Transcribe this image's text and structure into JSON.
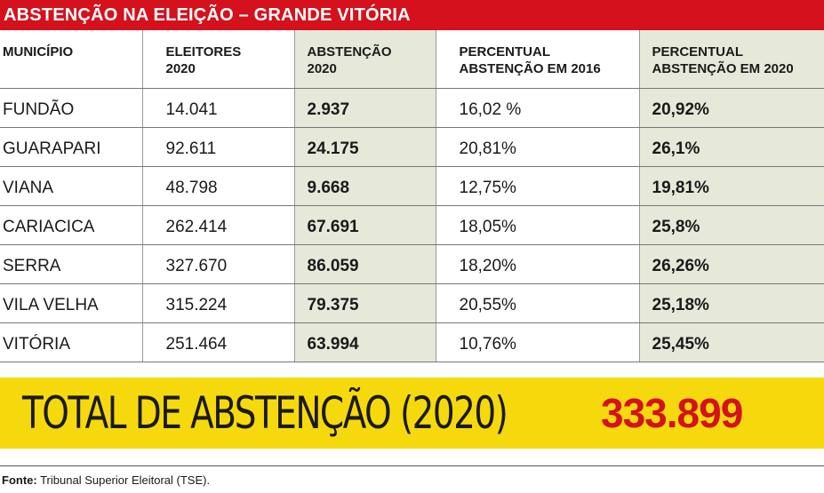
{
  "title": "ABSTENÇÃO NA ELEIÇÃO – GRANDE VITÓRIA",
  "headers": [
    [
      "MUNICÍPIO",
      ""
    ],
    [
      "ELEITORES",
      "2020"
    ],
    [
      "ABSTENÇÃO",
      "2020"
    ],
    [
      "PERCENTUAL",
      "ABSTENÇÃO EM 2016"
    ],
    [
      "PERCENTUAL",
      "ABSTENÇÃO EM 2020"
    ]
  ],
  "rows": [
    [
      "FUNDÃO",
      "14.041",
      "2.937",
      "16,02 %",
      "20,92%"
    ],
    [
      "GUARAPARI",
      "92.611",
      "24.175",
      "20,81%",
      "26,1%"
    ],
    [
      "VIANA",
      "48.798",
      "9.668",
      "12,75%",
      "19,81%"
    ],
    [
      "CARIACICA",
      "262.414",
      "67.691",
      "18,05%",
      "25,8%"
    ],
    [
      "SERRA",
      "327.670",
      "86.059",
      "18,20%",
      "26,26%"
    ],
    [
      "VILA VELHA",
      "315.224",
      "79.375",
      "20,55%",
      "25,18%"
    ],
    [
      "VITÓRIA",
      "251.464",
      "63.994",
      "10,76%",
      "25,45%"
    ]
  ],
  "total": {
    "label": "TOTAL DE ABSTENÇÃO (2020)",
    "value": "333.899"
  },
  "source": {
    "label": "Fonte:",
    "text": " Tribunal Superior Eleitoral (TSE)."
  },
  "colors": {
    "title_bar": "#d4111c",
    "highlight_column": "#e6e9da",
    "total_bar": "#f6d90d",
    "total_value": "#d4111c"
  },
  "chart_data": {
    "type": "table",
    "title": "ABSTENÇÃO NA ELEIÇÃO – GRANDE VITÓRIA",
    "columns": [
      "MUNICÍPIO",
      "ELEITORES 2020",
      "ABSTENÇÃO 2020",
      "PERCENTUAL ABSTENÇÃO EM 2016",
      "PERCENTUAL ABSTENÇÃO EM 2020"
    ],
    "categories": [
      "FUNDÃO",
      "GUARAPARI",
      "VIANA",
      "CARIACICA",
      "SERRA",
      "VILA VELHA",
      "VITÓRIA"
    ],
    "series": [
      {
        "name": "ELEITORES 2020",
        "values": [
          14041,
          92611,
          48798,
          262414,
          327670,
          315224,
          251464
        ]
      },
      {
        "name": "ABSTENÇÃO 2020",
        "values": [
          2937,
          24175,
          9668,
          67691,
          86059,
          79375,
          63994
        ]
      },
      {
        "name": "PERCENTUAL ABSTENÇÃO EM 2016",
        "values": [
          16.02,
          20.81,
          12.75,
          18.05,
          18.2,
          20.55,
          10.76
        ]
      },
      {
        "name": "PERCENTUAL ABSTENÇÃO EM 2020",
        "values": [
          20.92,
          26.1,
          19.81,
          25.8,
          26.26,
          25.18,
          25.45
        ]
      }
    ],
    "total_abstention_2020": 333899
  }
}
